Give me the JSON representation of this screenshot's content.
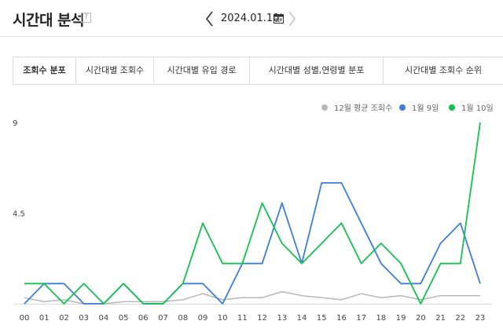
{
  "header": {
    "title": "시간대 분석",
    "help_icon": "question-icon",
    "date": "2024.01.10.",
    "calendar_icon": "calendar-icon"
  },
  "tabs": [
    {
      "label": "조회수 분포",
      "active": true
    },
    {
      "label": "시간대별 조회수",
      "active": false
    },
    {
      "label": "시간대별 유입 경로",
      "active": false
    },
    {
      "label": "시간대별 성별,연령별 분포",
      "active": false
    },
    {
      "label": "시간대별 조회수 순위",
      "active": false
    }
  ],
  "chart_data": {
    "type": "line",
    "categories": [
      "00",
      "01",
      "02",
      "03",
      "04",
      "05",
      "06",
      "07",
      "08",
      "09",
      "10",
      "11",
      "12",
      "13",
      "14",
      "15",
      "16",
      "17",
      "18",
      "19",
      "20",
      "21",
      "22",
      "23"
    ],
    "y_ticks": [
      "9",
      "4.5"
    ],
    "ylim": [
      0,
      9
    ],
    "grid": false,
    "legend_position": "top-right",
    "series": [
      {
        "name": "12월 평균 조회수",
        "color": "#b5b8bb",
        "values": [
          0.3,
          0.1,
          0.2,
          0,
          0,
          0.1,
          0.1,
          0.1,
          0.2,
          0.5,
          0.2,
          0.3,
          0.3,
          0.6,
          0.4,
          0.3,
          0.2,
          0.5,
          0.3,
          0.4,
          0.2,
          0.4,
          0.4,
          0.4
        ]
      },
      {
        "name": "1월 9일",
        "color": "#3d7fd6",
        "values": [
          0,
          1,
          1,
          0,
          0,
          1,
          0,
          0,
          1,
          1,
          0,
          2,
          2,
          5,
          2,
          6,
          6,
          4,
          2,
          1,
          1,
          3,
          4,
          1
        ]
      },
      {
        "name": "1월 10일",
        "color": "#13c24f",
        "values": [
          1,
          1,
          0,
          1,
          0,
          1,
          0,
          0,
          1,
          4,
          2,
          2,
          5,
          3,
          2,
          3,
          4,
          2,
          3,
          2,
          0,
          2,
          2,
          9
        ]
      }
    ]
  }
}
